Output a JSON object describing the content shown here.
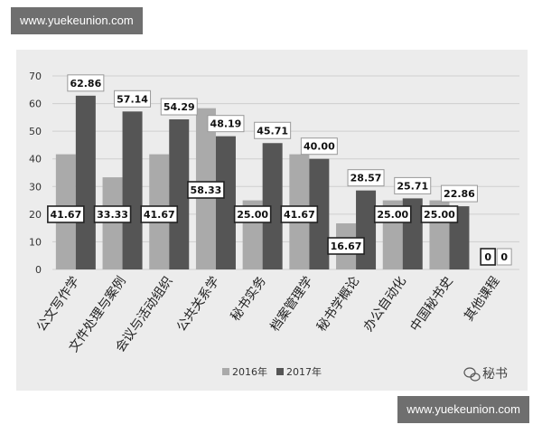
{
  "watermarks": {
    "top": "www.yuekeunion.com",
    "bottom": "www.yuekeunion.com"
  },
  "wechat_label": "秘书",
  "chart_data": {
    "type": "bar",
    "title": "",
    "xlabel": "",
    "ylabel": "",
    "ylim": [
      0,
      70
    ],
    "yticks": [
      "0",
      "10",
      "20",
      "30",
      "40",
      "50",
      "60",
      "70"
    ],
    "grid": true,
    "legend_position": "bottom-center",
    "categories": [
      "公文写作学",
      "文件处理与案例",
      "会议与活动组织",
      "公共关系学",
      "秘书实务",
      "档案管理学",
      "秘书学概论",
      "办公自动化",
      "中国秘书史",
      "其他课程"
    ],
    "series": [
      {
        "name": "2016年",
        "color": "#aaaaaa",
        "values": [
          41.67,
          33.33,
          41.67,
          58.33,
          25.0,
          41.67,
          16.67,
          25.0,
          25.0,
          0
        ],
        "labels": [
          "41.67",
          "33.33",
          "41.67",
          "58.33",
          "25.00",
          "41.67",
          "16.67",
          "25.00",
          "25.00",
          "0"
        ]
      },
      {
        "name": "2017年",
        "color": "#555555",
        "values": [
          62.86,
          57.14,
          54.29,
          48.19,
          45.71,
          40.0,
          28.57,
          25.71,
          22.86,
          0
        ],
        "labels": [
          "62.86",
          "57.14",
          "54.29",
          "48.19",
          "45.71",
          "40.00",
          "28.57",
          "25.71",
          "22.86",
          "0"
        ]
      }
    ]
  }
}
